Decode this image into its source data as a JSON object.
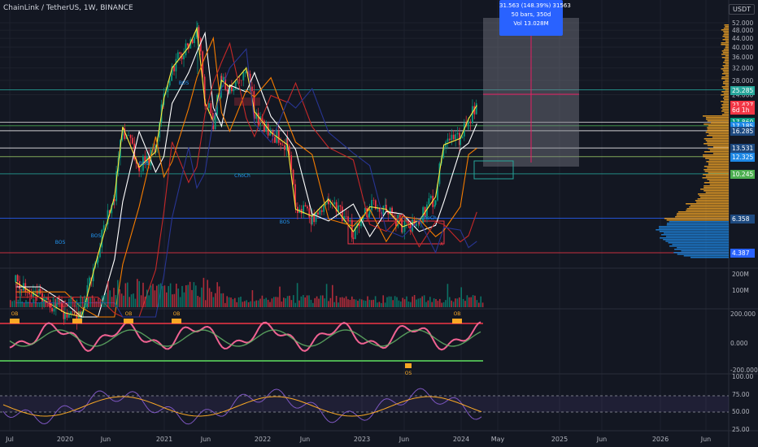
{
  "header": {
    "title": "ChainLink / TetherUS, 1W, BINANCE",
    "currency": "USDT"
  },
  "measure": {
    "line1": "31.563 (148.39%) 31563",
    "line2": "50 bars, 350d",
    "line3": "Vol 13.028M"
  },
  "price_tags": [
    {
      "label": "25.285",
      "value": 25.285,
      "color": "#26a69a"
    },
    {
      "label": "21.427",
      "value": 21.427,
      "color": "#f23645"
    },
    {
      "label": "6d 1h",
      "value": 20.4,
      "color": "#f23645"
    },
    {
      "label": "17.860",
      "value": 17.86,
      "color": "#089981"
    },
    {
      "label": "17.185",
      "value": 17.185,
      "color": "#1e88e5"
    },
    {
      "label": "16.285",
      "value": 16.285,
      "color": "#1e4a80"
    },
    {
      "label": "13.531",
      "value": 13.531,
      "color": "#1e4a80"
    },
    {
      "label": "12.325",
      "value": 12.325,
      "color": "#1e88e5"
    },
    {
      "label": "10.245",
      "value": 10.245,
      "color": "#4caf50"
    },
    {
      "label": "6.358",
      "value": 6.358,
      "color": "#1e4a80"
    },
    {
      "label": "4.387",
      "value": 4.387,
      "color": "#2962ff"
    }
  ],
  "chart_data": [
    {
      "type": "candlestick",
      "title": "ChainLink / TetherUS, 1W, BINANCE",
      "y_axis_labels": [
        "52.000",
        "48.000",
        "44.000",
        "40.000",
        "36.000",
        "32.000",
        "28.000",
        "24.000"
      ],
      "x_axis_labels": [
        "Jul",
        "2020",
        "Jun",
        "2021",
        "Jun",
        "2022",
        "Jun",
        "2023",
        "Jun",
        "2024",
        "May",
        "2025",
        "Jun",
        "2026",
        "Jun"
      ],
      "annotations": [
        "BOS",
        "BOS",
        "BOS",
        "BOS",
        "ChoCh",
        "BOS",
        "ChoCh",
        "X"
      ],
      "horizontal_levels": [
        25.285,
        17.86,
        17.185,
        16.285,
        13.531,
        12.325,
        10.245,
        6.358,
        4.387
      ],
      "close_series_approx": [
        {
          "x": "2019-07",
          "y": 3.2
        },
        {
          "x": "2019-10",
          "y": 2.7
        },
        {
          "x": "2020-01",
          "y": 2.3
        },
        {
          "x": "2020-03",
          "y": 2.2
        },
        {
          "x": "2020-05",
          "y": 4.3
        },
        {
          "x": "2020-07",
          "y": 8.0
        },
        {
          "x": "2020-08",
          "y": 17.0
        },
        {
          "x": "2020-10",
          "y": 11.0
        },
        {
          "x": "2020-12",
          "y": 13.0
        },
        {
          "x": "2021-01",
          "y": 23.0
        },
        {
          "x": "2021-02",
          "y": 32.0
        },
        {
          "x": "2021-04",
          "y": 40.0
        },
        {
          "x": "2021-05",
          "y": 49.0
        },
        {
          "x": "2021-06",
          "y": 22.0
        },
        {
          "x": "2021-07",
          "y": 18.0
        },
        {
          "x": "2021-08",
          "y": 28.0
        },
        {
          "x": "2021-09",
          "y": 26.0
        },
        {
          "x": "2021-11",
          "y": 32.0
        },
        {
          "x": "2021-12",
          "y": 20.0
        },
        {
          "x": "2022-02",
          "y": 16.0
        },
        {
          "x": "2022-04",
          "y": 14.0
        },
        {
          "x": "2022-05",
          "y": 7.0
        },
        {
          "x": "2022-07",
          "y": 6.5
        },
        {
          "x": "2022-09",
          "y": 7.8
        },
        {
          "x": "2022-12",
          "y": 5.5
        },
        {
          "x": "2023-02",
          "y": 7.2
        },
        {
          "x": "2023-04",
          "y": 7.0
        },
        {
          "x": "2023-06",
          "y": 5.8
        },
        {
          "x": "2023-08",
          "y": 6.2
        },
        {
          "x": "2023-10",
          "y": 8.0
        },
        {
          "x": "2023-11",
          "y": 14.0
        },
        {
          "x": "2024-01",
          "y": 15.0
        },
        {
          "x": "2024-02",
          "y": 18.5
        },
        {
          "x": "2024-03",
          "y": 21.4
        }
      ]
    },
    {
      "type": "bar",
      "title": "Volume",
      "y_axis_labels": [
        "200M",
        "100M"
      ]
    },
    {
      "type": "line",
      "title": "Oscillator",
      "y_axis_labels": [
        "200.000",
        "0.000",
        "-200.000"
      ],
      "annotations": [
        "OB",
        "OB",
        "OB",
        "OB",
        "OB",
        "OS"
      ]
    },
    {
      "type": "line",
      "title": "RSI",
      "y_axis_labels": [
        "100.00",
        "75.00",
        "50.00",
        "25.00"
      ]
    }
  ]
}
